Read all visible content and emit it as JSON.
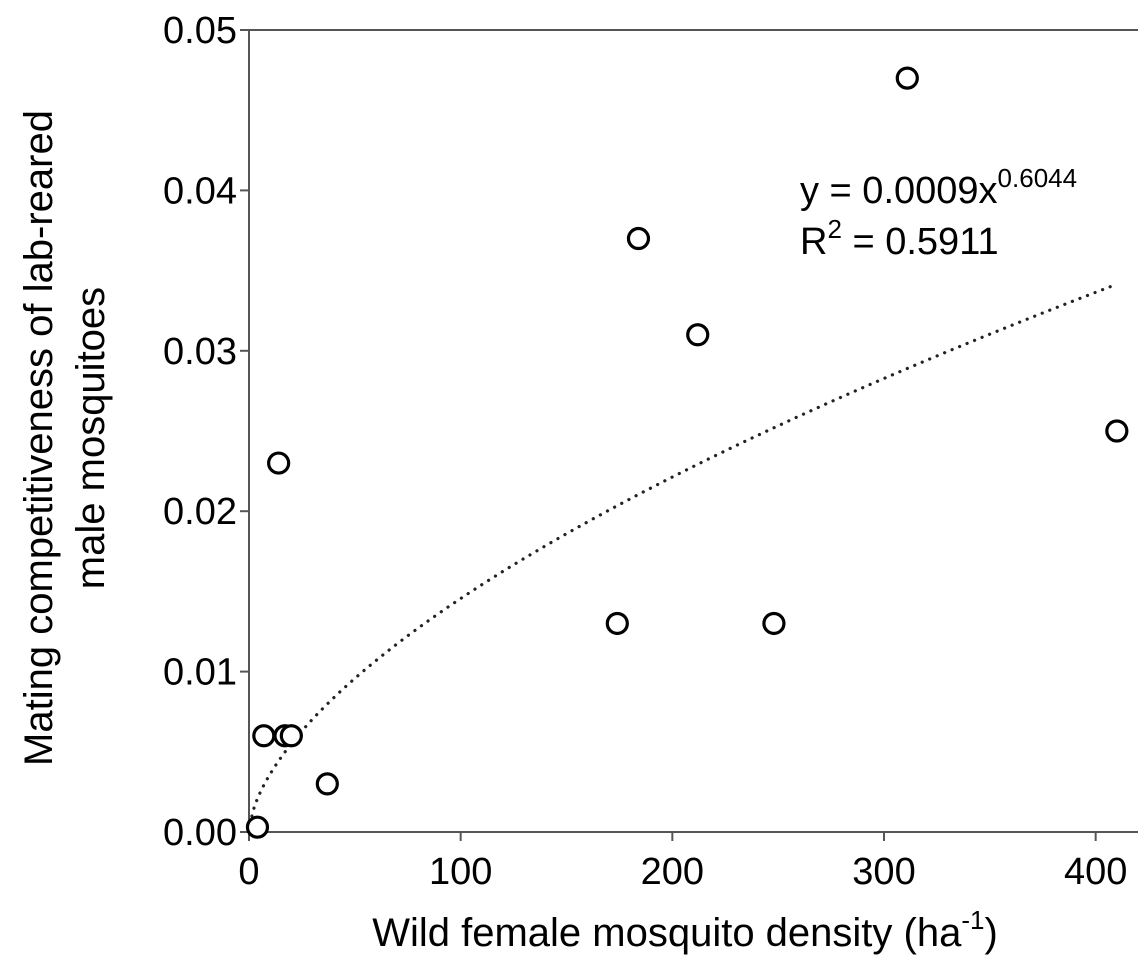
{
  "chart_data": {
    "type": "scatter",
    "title": "",
    "xlabel": {
      "text": "Wild female mosquito density (ha",
      "superscript": "-1",
      "suffix": ")"
    },
    "ylabel": {
      "line1": "Mating competitiveness of lab-reared",
      "line2": "male mosquitoes"
    },
    "xlim": [
      0,
      420
    ],
    "ylim": [
      0,
      0.05
    ],
    "x_ticks": [
      0,
      100,
      200,
      300,
      400
    ],
    "x_tick_labels": [
      "0",
      "100",
      "200",
      "300",
      "400"
    ],
    "y_ticks": [
      0,
      0.01,
      0.02,
      0.03,
      0.04,
      0.05
    ],
    "y_tick_labels": [
      "0.00",
      "0.01",
      "0.02",
      "0.03",
      "0.04",
      "0.05"
    ],
    "grid": false,
    "legend": "none",
    "points": [
      {
        "x": 4,
        "y": 0.0003
      },
      {
        "x": 7,
        "y": 0.006
      },
      {
        "x": 14,
        "y": 0.023
      },
      {
        "x": 17,
        "y": 0.006
      },
      {
        "x": 20,
        "y": 0.006
      },
      {
        "x": 37,
        "y": 0.003
      },
      {
        "x": 174,
        "y": 0.013
      },
      {
        "x": 184,
        "y": 0.037
      },
      {
        "x": 212,
        "y": 0.031
      },
      {
        "x": 248,
        "y": 0.013
      },
      {
        "x": 311,
        "y": 0.047
      },
      {
        "x": 410,
        "y": 0.025
      }
    ],
    "trendline": {
      "model": "power",
      "coefficient": 0.0009,
      "exponent": 0.6044,
      "style": "dotted",
      "x_range": [
        0,
        410
      ],
      "equation": {
        "prefix": "y = 0.0009x",
        "exponent_label": "0.6044"
      },
      "r_squared": {
        "prefix": "R",
        "power": "2",
        "suffix": " = 0.5911"
      }
    }
  }
}
